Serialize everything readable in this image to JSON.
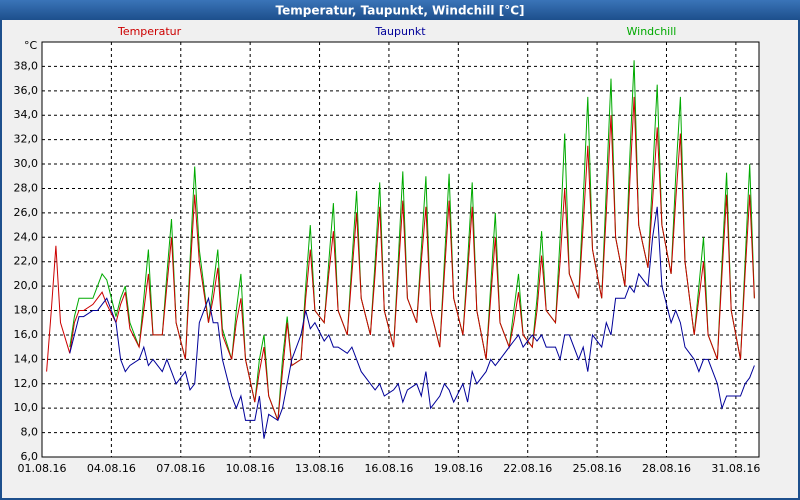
{
  "chart_data": {
    "type": "line",
    "title": "Temperatur, Taupunkt, Windchill [°C]",
    "y_label": "°C",
    "x": [
      0.2,
      0.4,
      0.6,
      0.8,
      1.2,
      1.4,
      1.6,
      1.8,
      2.2,
      2.4,
      2.6,
      2.8,
      3.2,
      3.4,
      3.6,
      3.8,
      4.2,
      4.4,
      4.6,
      4.8,
      5.2,
      5.4,
      5.6,
      5.8,
      6.2,
      6.4,
      6.6,
      6.8,
      7.2,
      7.4,
      7.6,
      7.8,
      8.2,
      8.4,
      8.6,
      8.8,
      9.2,
      9.4,
      9.6,
      9.8,
      10.2,
      10.4,
      10.6,
      10.8,
      11.2,
      11.4,
      11.6,
      11.8,
      12.2,
      12.4,
      12.6,
      12.8,
      13.2,
      13.4,
      13.6,
      13.8,
      14.2,
      14.4,
      14.6,
      14.8,
      15.2,
      15.4,
      15.6,
      15.8,
      16.2,
      16.4,
      16.6,
      16.8,
      17.2,
      17.4,
      17.6,
      17.8,
      18.2,
      18.4,
      18.6,
      18.8,
      19.2,
      19.4,
      19.6,
      19.8,
      20.2,
      20.4,
      20.6,
      20.8,
      21.2,
      21.4,
      21.6,
      21.8,
      22.2,
      22.4,
      22.6,
      22.8,
      23.2,
      23.4,
      23.6,
      23.8,
      24.2,
      24.4,
      24.6,
      24.8,
      25.2,
      25.4,
      25.6,
      25.8,
      26.2,
      26.4,
      26.6,
      26.8,
      27.2,
      27.4,
      27.6,
      27.8,
      28.2,
      28.4,
      28.6,
      28.8,
      29.2,
      29.4,
      29.6,
      29.8,
      30.2,
      30.4,
      30.6,
      30.8
    ],
    "series": [
      {
        "name": "Temperatur",
        "color": "#cc0000",
        "values": [
          13,
          18,
          23.3,
          17,
          14.5,
          17,
          18,
          18,
          18.5,
          19,
          19.5,
          18.5,
          17,
          18.5,
          19.5,
          16.5,
          15,
          18,
          21,
          16,
          16,
          20,
          24,
          17,
          14,
          21,
          27.5,
          22,
          17,
          19,
          21.5,
          16,
          14,
          17,
          19,
          14,
          10.5,
          13,
          15,
          11,
          9,
          13,
          17,
          13.5,
          14,
          19,
          23,
          18,
          17,
          21,
          24.5,
          18,
          16,
          21,
          26,
          19,
          16,
          21,
          26.5,
          18,
          15,
          21,
          27,
          19,
          17,
          22,
          26.5,
          18,
          15,
          21,
          27,
          19,
          16,
          21,
          26.5,
          18,
          14,
          19,
          24,
          17,
          15,
          17,
          19.5,
          16,
          15,
          18,
          22.5,
          18,
          17,
          22,
          28,
          21,
          19,
          25,
          31.5,
          23,
          19,
          26,
          34,
          24,
          20,
          28,
          35.5,
          25,
          21.5,
          27,
          33,
          25,
          21,
          27,
          32.5,
          22,
          16,
          19,
          22,
          16,
          14,
          21,
          27.5,
          18,
          14,
          21,
          27.5,
          19
        ]
      },
      {
        "name": "Taupunkt",
        "color": "#000099",
        "values": [
          null,
          null,
          null,
          null,
          14.5,
          16,
          17.5,
          17.5,
          18,
          18,
          18.5,
          19,
          17,
          14,
          13,
          13.5,
          14,
          15,
          13.5,
          14,
          13,
          14,
          13,
          12,
          13,
          11.5,
          12,
          17,
          19,
          17,
          17,
          14,
          11,
          10,
          11,
          9,
          9,
          11,
          7.5,
          9.5,
          9,
          10,
          12,
          14,
          16,
          18,
          16.5,
          17,
          15.5,
          16,
          15,
          15,
          14.5,
          15,
          14,
          13,
          12,
          11.5,
          12,
          11,
          11.5,
          12,
          10.5,
          11.5,
          12,
          11,
          13,
          10,
          11,
          12,
          11.5,
          10.5,
          12,
          10.5,
          13,
          12,
          13,
          14,
          13.5,
          14,
          15,
          15.5,
          16,
          15,
          16,
          15.5,
          16,
          15,
          15,
          14,
          16,
          16,
          14,
          15,
          13,
          16,
          15,
          17,
          16,
          19,
          19,
          20,
          19.5,
          21,
          20,
          24,
          26.5,
          20,
          17,
          18,
          17,
          15,
          14,
          13,
          14,
          14,
          12,
          10,
          11,
          11,
          11,
          12,
          12.5,
          13.5
        ]
      },
      {
        "name": "Windchill",
        "color": "#00aa00",
        "values": [
          null,
          null,
          null,
          null,
          15,
          17.5,
          19,
          19,
          19,
          20,
          21,
          20.5,
          17.5,
          19,
          20,
          17,
          15,
          19,
          23,
          16,
          16,
          21,
          25.5,
          17,
          14,
          22,
          29.8,
          23,
          17,
          20,
          23,
          16.5,
          14,
          18,
          21,
          14,
          10.5,
          14,
          16,
          11,
          9,
          14,
          17.5,
          13.5,
          14,
          20,
          25,
          18,
          17,
          22,
          26.8,
          18,
          16,
          22,
          27.8,
          19,
          16,
          22,
          28.5,
          18,
          15,
          22,
          29.4,
          19,
          17,
          23,
          29,
          18,
          15,
          22,
          29.2,
          19,
          16,
          22,
          28.5,
          18,
          14,
          20,
          26,
          17,
          15,
          18,
          21,
          16,
          15,
          19,
          24.5,
          18,
          17,
          24,
          32.5,
          21,
          19,
          27,
          35.5,
          23,
          19,
          28,
          37,
          24,
          20,
          30,
          38.5,
          25,
          21.5,
          29,
          36.5,
          25,
          21,
          29,
          35.5,
          22,
          16,
          20,
          24,
          16,
          14,
          22,
          29.3,
          18,
          14,
          22,
          30,
          19
        ]
      }
    ],
    "xlim": [
      0,
      31
    ],
    "xticks": [
      {
        "value": 0,
        "label": "01.08.16"
      },
      {
        "value": 3,
        "label": "04.08.16"
      },
      {
        "value": 6,
        "label": "07.08.16"
      },
      {
        "value": 9,
        "label": "10.08.16"
      },
      {
        "value": 12,
        "label": "13.08.16"
      },
      {
        "value": 15,
        "label": "16.08.16"
      },
      {
        "value": 18,
        "label": "19.08.16"
      },
      {
        "value": 21,
        "label": "22.08.16"
      },
      {
        "value": 24,
        "label": "25.08.16"
      },
      {
        "value": 27,
        "label": "28.08.16"
      },
      {
        "value": 30,
        "label": "31.08.16"
      }
    ],
    "ylim": [
      6,
      40
    ],
    "yticks": [
      {
        "value": 6,
        "label": "6,0"
      },
      {
        "value": 8,
        "label": "8,0"
      },
      {
        "value": 10,
        "label": "10,0"
      },
      {
        "value": 12,
        "label": "12,0"
      },
      {
        "value": 14,
        "label": "14,0"
      },
      {
        "value": 16,
        "label": "16,0"
      },
      {
        "value": 18,
        "label": "18,0"
      },
      {
        "value": 20,
        "label": "20,0"
      },
      {
        "value": 22,
        "label": "22,0"
      },
      {
        "value": 24,
        "label": "24,0"
      },
      {
        "value": 26,
        "label": "26,0"
      },
      {
        "value": 28,
        "label": "28,0"
      },
      {
        "value": 30,
        "label": "30,0"
      },
      {
        "value": 32,
        "label": "32,0"
      },
      {
        "value": 34,
        "label": "34,0"
      },
      {
        "value": 36,
        "label": "36,0"
      },
      {
        "value": 38,
        "label": "38,0"
      }
    ],
    "grid": true
  }
}
